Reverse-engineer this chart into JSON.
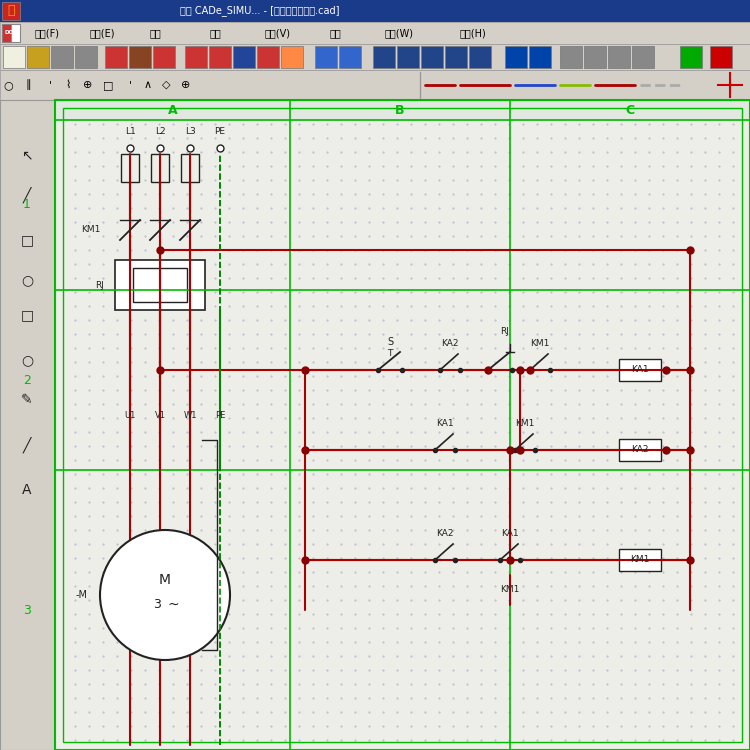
{
  "fig_w": 7.5,
  "fig_h": 7.5,
  "dpi": 100,
  "bg_color": "#d4d0c8",
  "canvas_color": "#eeeee8",
  "border_color": "#00bb00",
  "line_color": "#aa0000",
  "dark_color": "#222222",
  "node_color": "#880000",
  "title_text": "关于 CADe_SIMU... - [单按钮启停电路.cad]",
  "title_bg": "#1a3a8a",
  "menu_text": "文件(F)  编辑(E)  绘图  模拟  查看(V)  显示  窗口(W)  帮助(H)",
  "col_labels": [
    "A",
    "B",
    "C"
  ],
  "row_labels": [
    "1",
    "2",
    "3"
  ],
  "power_labels": [
    "L1",
    "L2",
    "L3",
    "PE"
  ]
}
